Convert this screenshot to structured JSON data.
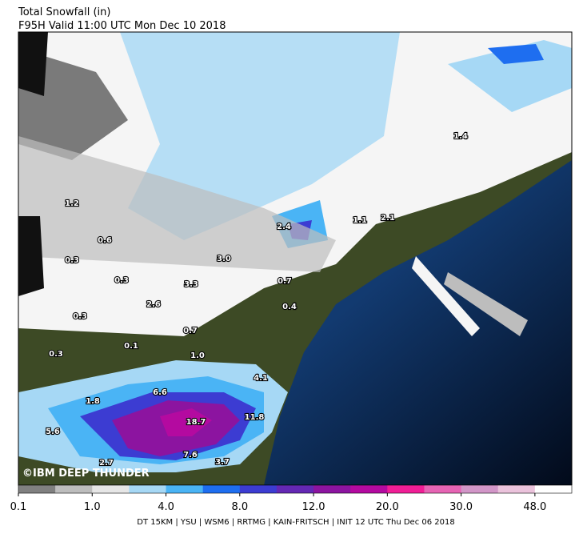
{
  "header": {
    "title": "Total Snowfall (in)",
    "subtitle": "F95H Valid 11:00 UTC Mon Dec 10 2018"
  },
  "map": {
    "watermark": "©IBM DEEP THUNDER",
    "labels": [
      "1.2",
      "0.6",
      "0.3",
      "0.3",
      "2.6",
      "0.3",
      "0.3",
      "0.1",
      "1.8",
      "5.6",
      "2.7",
      "6.6",
      "18.7",
      "7.6",
      "3.7",
      "11.8",
      "4.1",
      "1.0",
      "0.7",
      "3.3",
      "3.0",
      "0.7",
      "0.4",
      "2.4",
      "1.1",
      "2.1",
      "1.4"
    ]
  },
  "colorbar": {
    "colors": [
      "#808080",
      "#bdbdbd",
      "#e6e6e6",
      "#a6d8f5",
      "#4ab4f5",
      "#1e6ef0",
      "#3c3cd2",
      "#6428b4",
      "#8c14a0",
      "#b40aa0",
      "#f01e96",
      "#e664b4",
      "#d296c8",
      "#ebc3dc",
      "#ffffff"
    ],
    "ticks": [
      "0.1",
      "1.0",
      "4.0",
      "8.0",
      "12.0",
      "20.0",
      "30.0",
      "48.0"
    ]
  },
  "footer": "DT 15KM | YSU | WSM6 | RRTMG | KAIN-FRITSCH | INIT 12 UTC Thu Dec 06 2018"
}
